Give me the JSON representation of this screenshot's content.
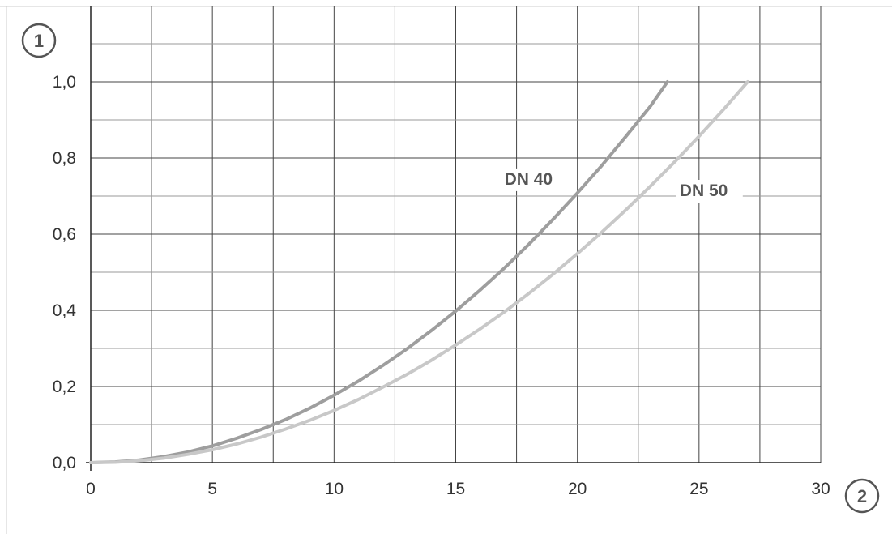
{
  "chart_data": {
    "type": "line",
    "title": "",
    "xlabel_marker": "2",
    "ylabel_marker": "1",
    "xlim": [
      0,
      30
    ],
    "ylim": [
      0,
      1.0
    ],
    "x_ticks": [
      0,
      5,
      10,
      15,
      20,
      25,
      30
    ],
    "x_tick_labels": [
      "0",
      "5",
      "10",
      "15",
      "20",
      "25",
      "30"
    ],
    "y_ticks": [
      0,
      0.2,
      0.4,
      0.6,
      0.8,
      1.0
    ],
    "y_tick_labels": [
      "0,0",
      "0,2",
      "0,4",
      "0,6",
      "0,8",
      "1,0"
    ],
    "grid": true,
    "series": [
      {
        "name": "DN 40",
        "color": "#9e9e9e",
        "x": [
          0,
          1,
          2,
          3,
          4,
          5,
          6,
          7,
          8,
          9,
          10,
          11,
          12,
          13,
          14,
          15,
          16,
          17,
          18,
          19,
          20,
          21,
          22,
          23,
          23.7
        ],
        "y": [
          0,
          0.002,
          0.007,
          0.016,
          0.028,
          0.044,
          0.064,
          0.087,
          0.113,
          0.143,
          0.177,
          0.214,
          0.255,
          0.299,
          0.347,
          0.398,
          0.453,
          0.511,
          0.573,
          0.639,
          0.708,
          0.78,
          0.857,
          0.936,
          1.0
        ]
      },
      {
        "name": "DN 50",
        "color": "#c8c8c8",
        "x": [
          0,
          1,
          2,
          3,
          4,
          5,
          6,
          7,
          8,
          9,
          10,
          11,
          12,
          13,
          14,
          15,
          16,
          17,
          18,
          19,
          20,
          21,
          22,
          23,
          24,
          25,
          26,
          27
        ],
        "y": [
          0,
          0.001,
          0.005,
          0.012,
          0.022,
          0.034,
          0.049,
          0.067,
          0.088,
          0.111,
          0.137,
          0.166,
          0.198,
          0.232,
          0.269,
          0.309,
          0.351,
          0.396,
          0.444,
          0.495,
          0.549,
          0.605,
          0.664,
          0.726,
          0.79,
          0.857,
          0.927,
          1.0
        ]
      }
    ]
  }
}
